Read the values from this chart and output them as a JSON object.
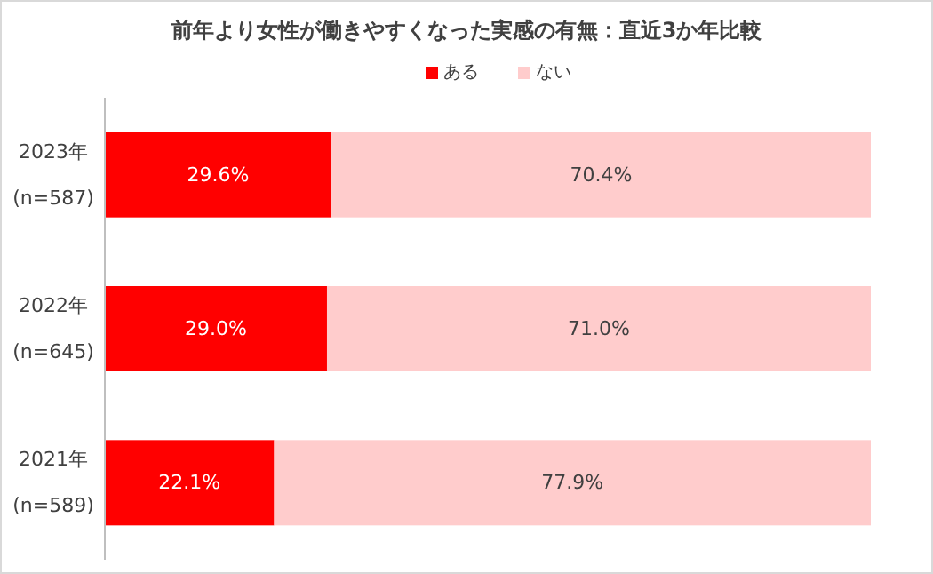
{
  "chart_data": {
    "type": "bar",
    "orientation": "horizontal",
    "stacked": true,
    "title": "前年より女性が働きやすくなった実感の有無：直近3か年比較",
    "categories": [
      "2023年 (n=587)",
      "2022年 (n=645)",
      "2021年 (n=589)"
    ],
    "series": [
      {
        "name": "ある",
        "color": "#ff0000",
        "values": [
          29.6,
          29.0,
          22.1
        ],
        "value_labels": [
          "29.6%",
          "29.0%",
          "22.1%"
        ]
      },
      {
        "name": "ない",
        "color": "#ffcccc",
        "values": [
          70.4,
          71.0,
          77.9
        ],
        "value_labels": [
          "70.4%",
          "71.0%",
          "77.9%"
        ]
      }
    ],
    "legend": "top",
    "tick_labels": "y"
  }
}
